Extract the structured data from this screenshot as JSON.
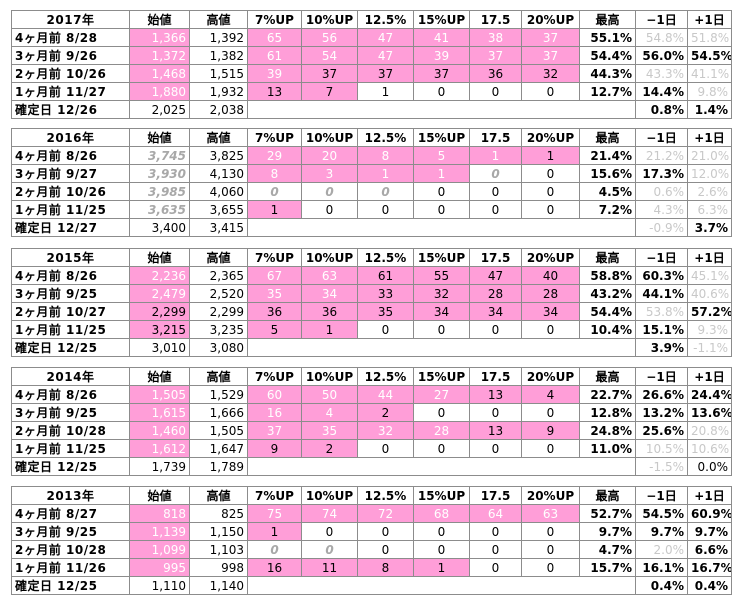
{
  "headers": {
    "open": "始値",
    "high": "高値",
    "p7": "7%UP",
    "p10": "10%UP",
    "p125": "12.5%",
    "p15": "15%UP",
    "p175": "17.5",
    "p20": "20%UP",
    "max": "最高",
    "minus1": "−1日",
    "plus1": "+1日"
  },
  "blocks": [
    {
      "year": "2017年",
      "rows": [
        {
          "label": "4ヶ月前 8/28",
          "open": "1,366",
          "high": "1,392",
          "c7": "65",
          "c10": "56",
          "c125": "47",
          "c15": "41",
          "c175": "38",
          "c20": "37",
          "max": "55.1%",
          "m1": "54.8%",
          "p1": "51.8%"
        },
        {
          "label": "3ヶ月前 9/26",
          "open": "1,372",
          "high": "1,382",
          "c7": "61",
          "c10": "54",
          "c125": "47",
          "c15": "39",
          "c175": "37",
          "c20": "37",
          "max": "54.4%",
          "m1": "56.0%",
          "p1": "54.5%"
        },
        {
          "label": "2ヶ月前 10/26",
          "open": "1,468",
          "high": "1,515",
          "c7": "39",
          "c10": "37",
          "c125": "37",
          "c15": "37",
          "c175": "36",
          "c20": "32",
          "max": "44.3%",
          "m1": "43.3%",
          "p1": "41.1%"
        },
        {
          "label": "1ヶ月前 11/27",
          "open": "1,880",
          "high": "1,932",
          "c7": "13",
          "c10": "7",
          "c125": "1",
          "c15": "0",
          "c175": "0",
          "c20": "0",
          "max": "12.7%",
          "m1": "14.4%",
          "p1": "9.8%"
        }
      ],
      "final": {
        "label": "確定日 12/26",
        "open": "2,025",
        "high": "2,038",
        "m1": "0.8%",
        "p1": "1.4%"
      }
    },
    {
      "year": "2016年",
      "rows": [
        {
          "label": "4ヶ月前 8/26",
          "open": "3,745",
          "high": "3,825",
          "c7": "29",
          "c10": "20",
          "c125": "8",
          "c15": "5",
          "c175": "1",
          "c20": "1",
          "max": "21.4%",
          "m1": "21.2%",
          "p1": "21.0%"
        },
        {
          "label": "3ヶ月前 9/27",
          "open": "3,930",
          "high": "4,130",
          "c7": "8",
          "c10": "3",
          "c125": "1",
          "c15": "1",
          "c175": "0",
          "c20": "0",
          "max": "15.6%",
          "m1": "17.3%",
          "p1": "12.0%"
        },
        {
          "label": "2ヶ月前 10/26",
          "open": "3,985",
          "high": "4,060",
          "c7": "0",
          "c10": "0",
          "c125": "0",
          "c15": "0",
          "c175": "0",
          "c20": "0",
          "max": "4.5%",
          "m1": "0.6%",
          "p1": "2.6%"
        },
        {
          "label": "1ヶ月前 11/25",
          "open": "3,635",
          "high": "3,655",
          "c7": "1",
          "c10": "0",
          "c125": "0",
          "c15": "0",
          "c175": "0",
          "c20": "0",
          "max": "7.2%",
          "m1": "4.3%",
          "p1": "6.3%"
        }
      ],
      "final": {
        "label": "確定日 12/27",
        "open": "3,400",
        "high": "3,415",
        "m1": "-0.9%",
        "p1": "3.7%"
      }
    },
    {
      "year": "2015年",
      "rows": [
        {
          "label": "4ヶ月前 8/26",
          "open": "2,236",
          "high": "2,365",
          "c7": "67",
          "c10": "63",
          "c125": "61",
          "c15": "55",
          "c175": "47",
          "c20": "40",
          "max": "58.8%",
          "m1": "60.3%",
          "p1": "45.1%"
        },
        {
          "label": "3ヶ月前 9/25",
          "open": "2,479",
          "high": "2,520",
          "c7": "35",
          "c10": "34",
          "c125": "33",
          "c15": "32",
          "c175": "28",
          "c20": "28",
          "max": "43.2%",
          "m1": "44.1%",
          "p1": "40.6%"
        },
        {
          "label": "2ヶ月前 10/27",
          "open": "2,299",
          "high": "2,299",
          "c7": "36",
          "c10": "36",
          "c125": "35",
          "c15": "34",
          "c175": "34",
          "c20": "34",
          "max": "54.4%",
          "m1": "53.8%",
          "p1": "57.2%"
        },
        {
          "label": "1ヶ月前 11/25",
          "open": "3,215",
          "high": "3,235",
          "c7": "5",
          "c10": "1",
          "c125": "0",
          "c15": "0",
          "c175": "0",
          "c20": "0",
          "max": "10.4%",
          "m1": "15.1%",
          "p1": "9.3%"
        }
      ],
      "final": {
        "label": "確定日 12/25",
        "open": "3,010",
        "high": "3,080",
        "m1": "3.9%",
        "p1": "-1.1%"
      }
    },
    {
      "year": "2014年",
      "rows": [
        {
          "label": "4ヶ月前 8/26",
          "open": "1,505",
          "high": "1,529",
          "c7": "60",
          "c10": "50",
          "c125": "44",
          "c15": "27",
          "c175": "13",
          "c20": "4",
          "max": "22.7%",
          "m1": "26.6%",
          "p1": "24.4%"
        },
        {
          "label": "3ヶ月前 9/25",
          "open": "1,615",
          "high": "1,666",
          "c7": "16",
          "c10": "4",
          "c125": "2",
          "c15": "0",
          "c175": "0",
          "c20": "0",
          "max": "12.8%",
          "m1": "13.2%",
          "p1": "13.6%"
        },
        {
          "label": "2ヶ月前 10/28",
          "open": "1,460",
          "high": "1,505",
          "c7": "37",
          "c10": "35",
          "c125": "32",
          "c15": "28",
          "c175": "13",
          "c20": "9",
          "max": "24.8%",
          "m1": "25.6%",
          "p1": "20.8%"
        },
        {
          "label": "1ヶ月前 11/25",
          "open": "1,612",
          "high": "1,647",
          "c7": "9",
          "c10": "2",
          "c125": "0",
          "c15": "0",
          "c175": "0",
          "c20": "0",
          "max": "11.0%",
          "m1": "10.5%",
          "p1": "10.6%"
        }
      ],
      "final": {
        "label": "確定日 12/25",
        "open": "1,739",
        "high": "1,789",
        "m1": "-1.5%",
        "p1": "0.0%"
      }
    },
    {
      "year": "2013年",
      "rows": [
        {
          "label": "4ヶ月前 8/27",
          "open": "818",
          "high": "825",
          "c7": "75",
          "c10": "74",
          "c125": "72",
          "c15": "68",
          "c175": "64",
          "c20": "63",
          "max": "52.7%",
          "m1": "54.5%",
          "p1": "60.9%"
        },
        {
          "label": "3ヶ月前 9/25",
          "open": "1,139",
          "high": "1,150",
          "c7": "1",
          "c10": "0",
          "c125": "0",
          "c15": "0",
          "c175": "0",
          "c20": "0",
          "max": "9.7%",
          "m1": "9.7%",
          "p1": "9.7%"
        },
        {
          "label": "2ヶ月前 10/28",
          "open": "1,099",
          "high": "1,103",
          "c7": "0",
          "c10": "0",
          "c125": "0",
          "c15": "0",
          "c175": "0",
          "c20": "0",
          "max": "4.7%",
          "m1": "2.0%",
          "p1": "6.6%"
        },
        {
          "label": "1ヶ月前 11/26",
          "open": "995",
          "high": "998",
          "c7": "16",
          "c10": "11",
          "c125": "8",
          "c15": "1",
          "c175": "0",
          "c20": "0",
          "max": "15.7%",
          "m1": "16.1%",
          "p1": "16.7%"
        }
      ],
      "final": {
        "label": "確定日 12/25",
        "open": "1,110",
        "high": "1,140",
        "m1": "0.4%",
        "p1": "0.4%"
      }
    }
  ],
  "colors": {
    "highlight": "#ff9ed8",
    "grid": "#8c8c8c",
    "muted": "#c8c8c8"
  }
}
